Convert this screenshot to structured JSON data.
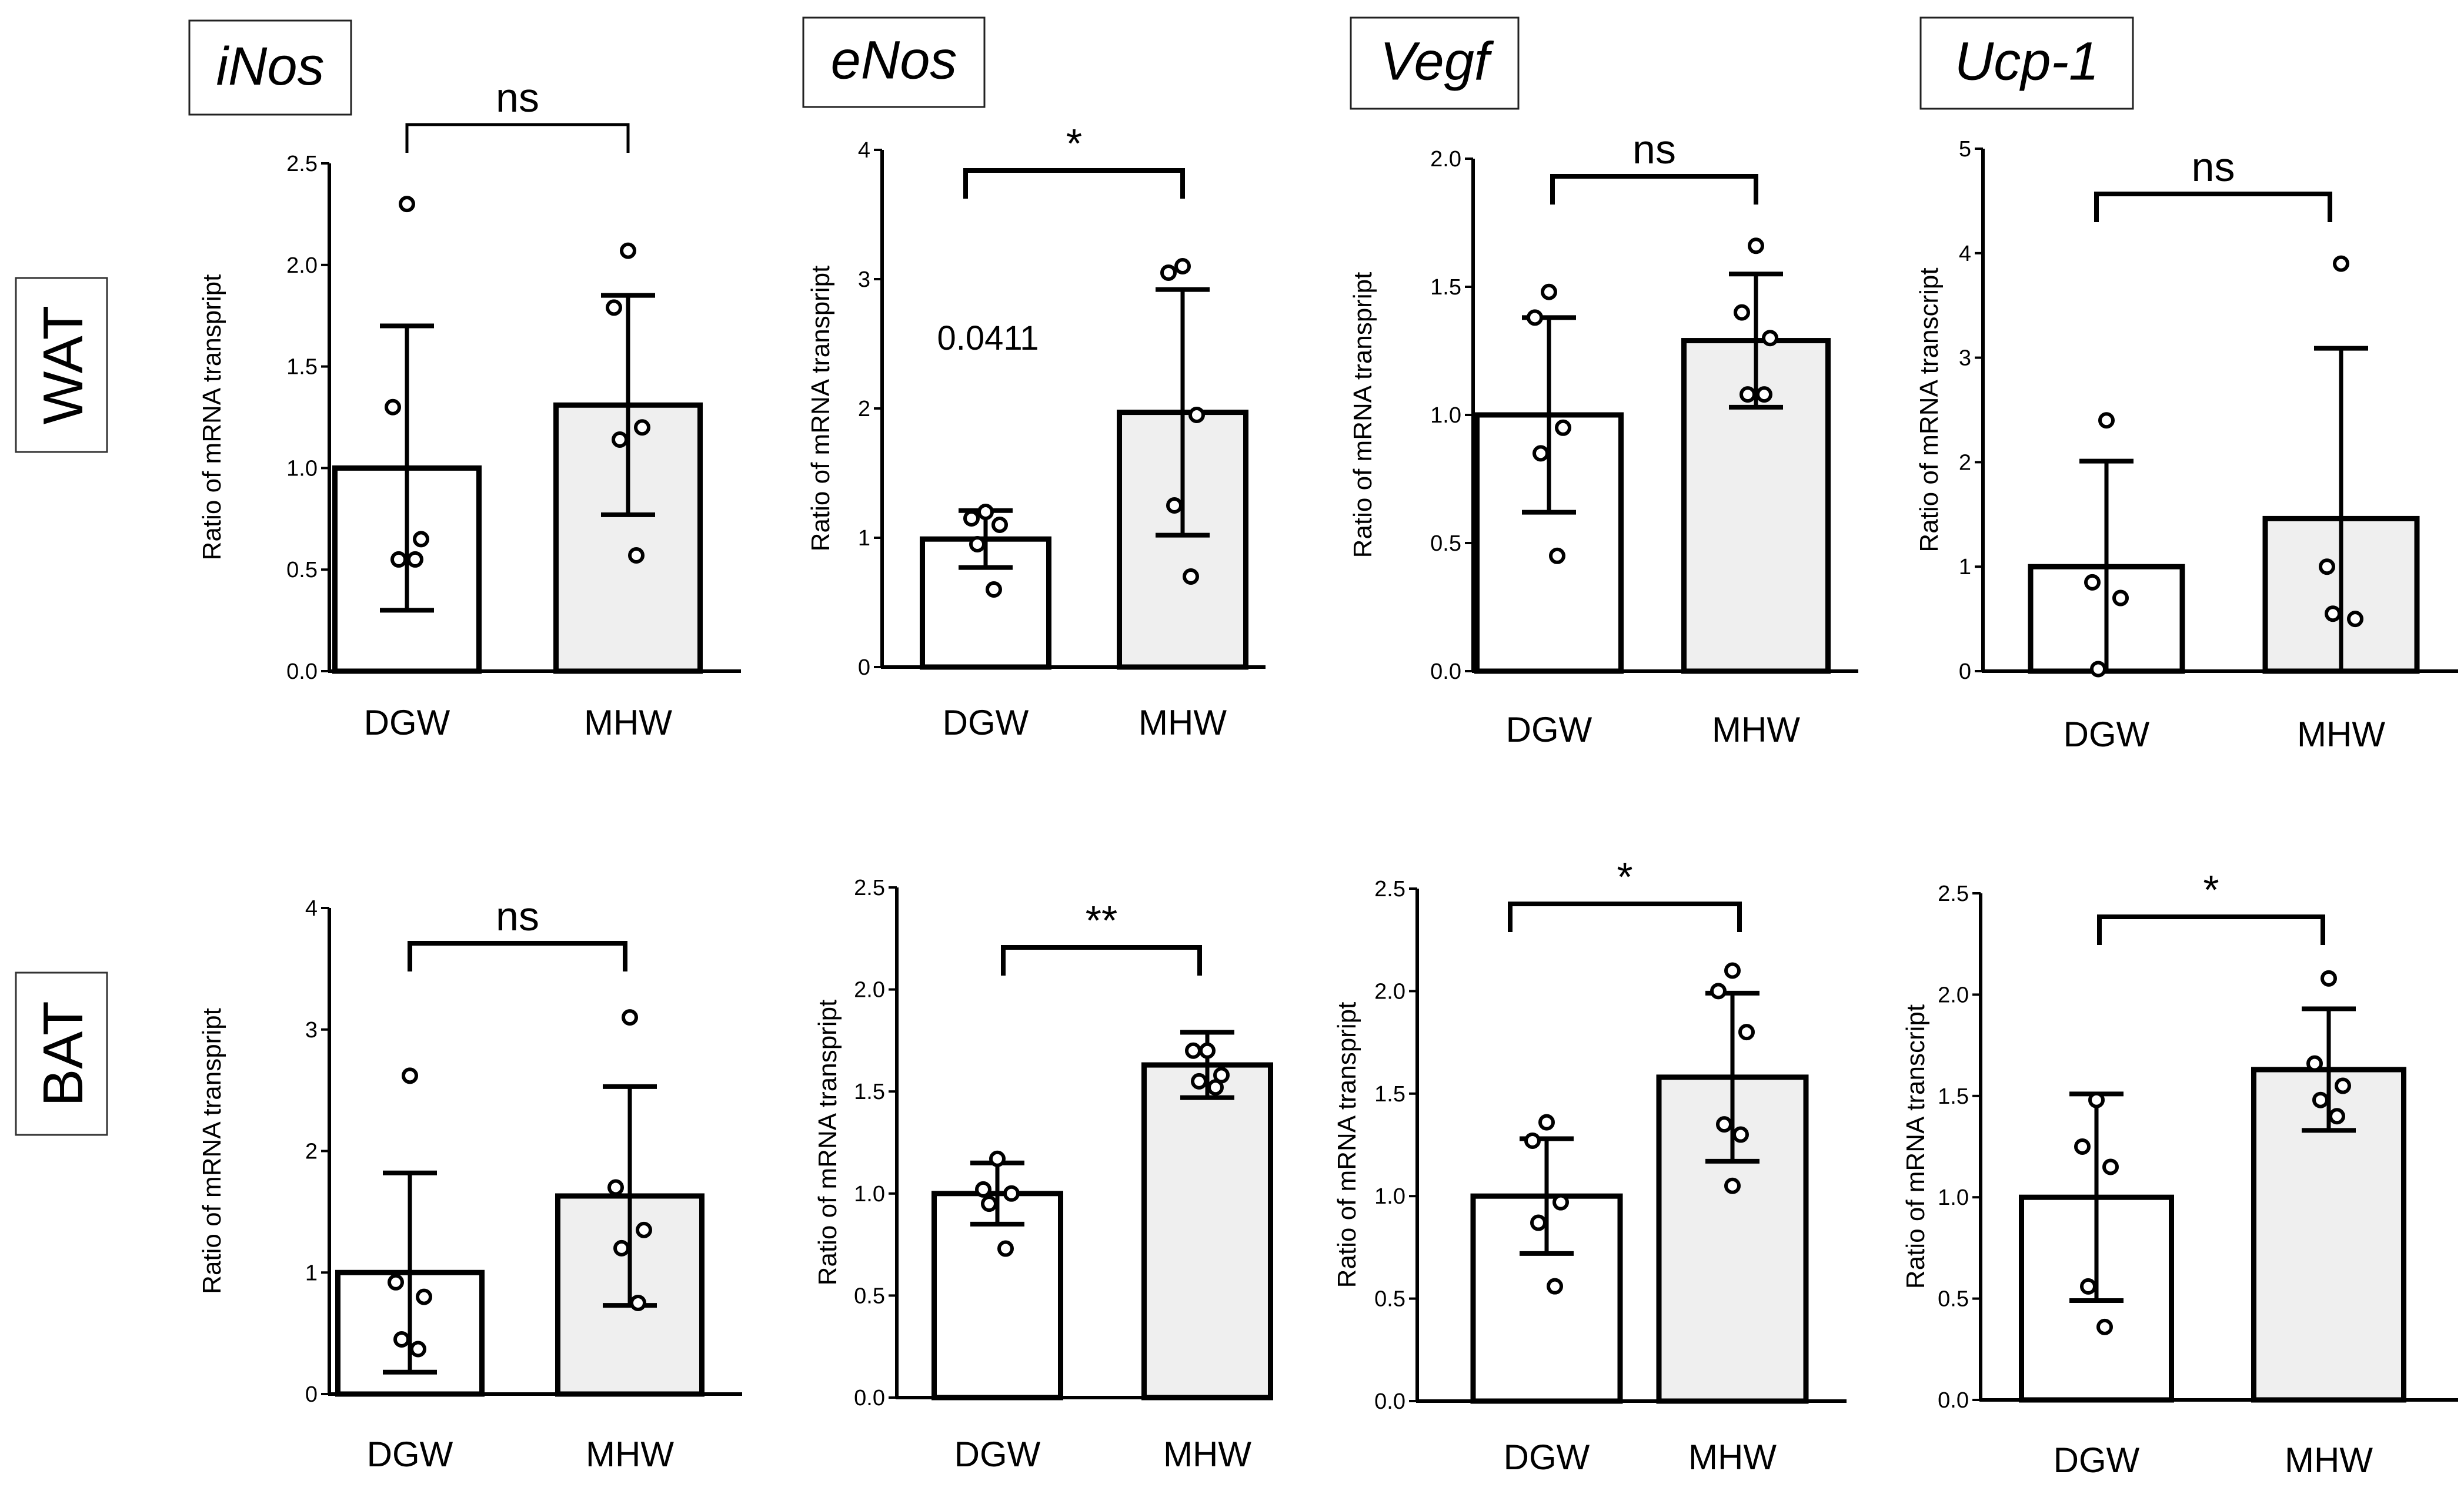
{
  "figure": {
    "row_labels": [
      "WAT",
      "BAT"
    ]
  },
  "chart_data": [
    {
      "type": "bar",
      "row": "WAT",
      "gene": "iNos",
      "title": "iNos",
      "xlabel": "",
      "ylabel": "Ratio of mRNA transpript",
      "categories": [
        "DGW",
        "MHW"
      ],
      "means": [
        1.0,
        1.31
      ],
      "errors": [
        0.7,
        0.54
      ],
      "points": [
        [
          2.3,
          1.3,
          0.65,
          0.55,
          0.55
        ],
        [
          2.07,
          1.79,
          1.2,
          1.14,
          0.57
        ]
      ],
      "ylim": [
        0,
        2.5
      ],
      "yticks": [
        "0.0",
        "0.5",
        "1.0",
        "1.5",
        "2.0",
        "2.5"
      ],
      "significance": "ns",
      "annotation": ""
    },
    {
      "type": "bar",
      "row": "WAT",
      "gene": "eNos",
      "title": "eNos",
      "xlabel": "",
      "ylabel": "Ratio of mRNA transpript",
      "categories": [
        "DGW",
        "MHW"
      ],
      "means": [
        0.99,
        1.97
      ],
      "errors": [
        0.22,
        0.95
      ],
      "points": [
        [
          1.2,
          1.15,
          1.1,
          0.95,
          0.6
        ],
        [
          3.1,
          3.05,
          1.95,
          1.25,
          0.7
        ]
      ],
      "ylim": [
        0,
        4
      ],
      "yticks": [
        "0",
        "1",
        "2",
        "3",
        "4"
      ],
      "significance": "*",
      "annotation": "0.0411"
    },
    {
      "type": "bar",
      "row": "WAT",
      "gene": "Vegf",
      "title": "Vegf",
      "xlabel": "",
      "ylabel": "Ratio of mRNA transpript",
      "categories": [
        "DGW",
        "MHW"
      ],
      "means": [
        1.0,
        1.29
      ],
      "errors": [
        0.38,
        0.26
      ],
      "points": [
        [
          1.48,
          1.38,
          0.95,
          0.85,
          0.45
        ],
        [
          1.66,
          1.4,
          1.3,
          1.08,
          1.08
        ]
      ],
      "ylim": [
        0,
        2.0
      ],
      "yticks": [
        "0.0",
        "0.5",
        "1.0",
        "1.5",
        "2.0"
      ],
      "significance": "ns",
      "annotation": ""
    },
    {
      "type": "bar",
      "row": "WAT",
      "gene": "Ucp-1",
      "title": "Ucp-1",
      "xlabel": "",
      "ylabel": "Ratio of mRNA transcript",
      "categories": [
        "DGW",
        "MHW"
      ],
      "means": [
        1.0,
        1.46
      ],
      "errors": [
        1.01,
        1.63
      ],
      "points": [
        [
          2.4,
          0.85,
          0.7,
          0.02
        ],
        [
          3.9,
          1.0,
          0.5,
          0.55
        ]
      ],
      "ylim": [
        0,
        5
      ],
      "yticks": [
        "0",
        "1",
        "2",
        "3",
        "4",
        "5"
      ],
      "significance": "ns",
      "annotation": ""
    },
    {
      "type": "bar",
      "row": "BAT",
      "gene": "iNos",
      "title": "",
      "xlabel": "",
      "ylabel": "Ratio of mRNA transpript",
      "categories": [
        "DGW",
        "MHW"
      ],
      "means": [
        1.0,
        1.63
      ],
      "errors": [
        0.82,
        0.9
      ],
      "points": [
        [
          2.62,
          0.92,
          0.8,
          0.45,
          0.37
        ],
        [
          3.1,
          1.7,
          1.35,
          1.2,
          0.75
        ]
      ],
      "ylim": [
        0,
        4
      ],
      "yticks": [
        "0",
        "1",
        "2",
        "3",
        "4"
      ],
      "significance": "ns",
      "annotation": ""
    },
    {
      "type": "bar",
      "row": "BAT",
      "gene": "eNos",
      "title": "",
      "xlabel": "",
      "ylabel": "Ratio of mRNA transpript",
      "categories": [
        "DGW",
        "MHW"
      ],
      "means": [
        1.0,
        1.63
      ],
      "errors": [
        0.15,
        0.16
      ],
      "points": [
        [
          1.17,
          1.02,
          1.0,
          0.95,
          0.73
        ],
        [
          1.7,
          1.7,
          1.58,
          1.55,
          1.52
        ]
      ],
      "ylim": [
        0,
        2.5
      ],
      "yticks": [
        "0.0",
        "0.5",
        "1.0",
        "1.5",
        "2.0",
        "2.5"
      ],
      "significance": "**",
      "annotation": ""
    },
    {
      "type": "bar",
      "row": "BAT",
      "gene": "Vegf",
      "title": "",
      "xlabel": "",
      "ylabel": "Ratio of mRNA transpript",
      "categories": [
        "DGW",
        "MHW"
      ],
      "means": [
        1.0,
        1.58
      ],
      "errors": [
        0.28,
        0.41
      ],
      "points": [
        [
          1.36,
          1.27,
          0.97,
          0.87,
          0.56
        ],
        [
          2.1,
          2.0,
          1.8,
          1.35,
          1.3,
          1.05
        ]
      ],
      "ylim": [
        0,
        2.5
      ],
      "yticks": [
        "0.0",
        "0.5",
        "1.0",
        "1.5",
        "2.0",
        "2.5"
      ],
      "significance": "*",
      "annotation": ""
    },
    {
      "type": "bar",
      "row": "BAT",
      "gene": "Ucp-1",
      "title": "",
      "xlabel": "",
      "ylabel": "Ratio of mRNA transcript",
      "categories": [
        "DGW",
        "MHW"
      ],
      "means": [
        1.0,
        1.63
      ],
      "errors": [
        0.51,
        0.3
      ],
      "points": [
        [
          1.48,
          1.25,
          1.15,
          0.56,
          0.36
        ],
        [
          2.08,
          1.66,
          1.55,
          1.48,
          1.4
        ]
      ],
      "ylim": [
        0,
        2.5
      ],
      "yticks": [
        "0.0",
        "0.5",
        "1.0",
        "1.5",
        "2.0",
        "2.5"
      ],
      "significance": "*",
      "annotation": ""
    }
  ]
}
